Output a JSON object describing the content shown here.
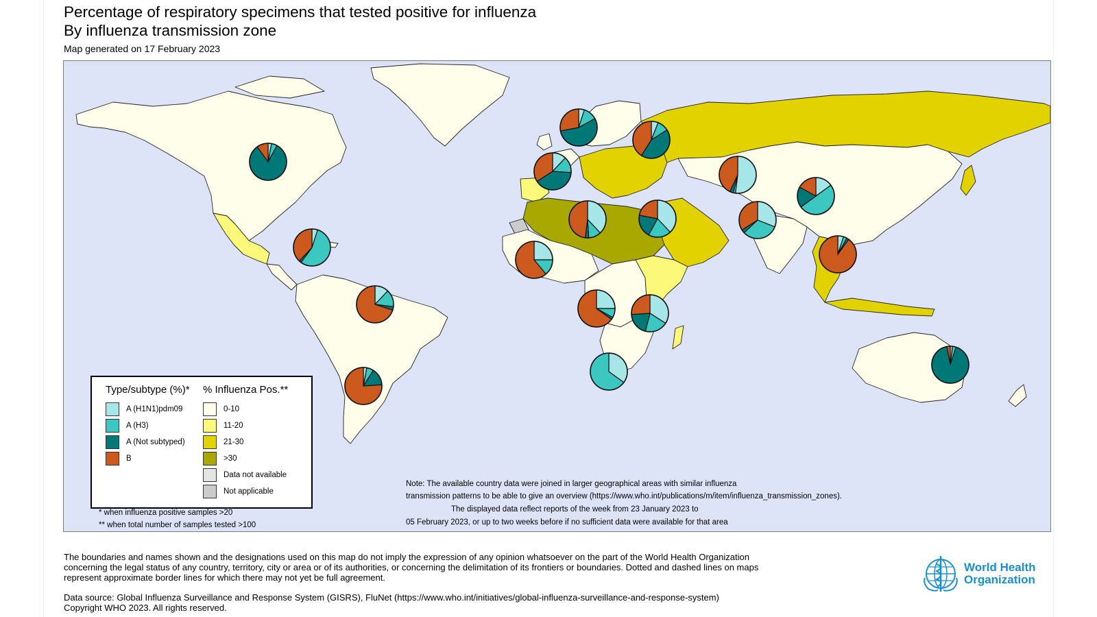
{
  "header": {
    "title_line1": "Percentage of respiratory specimens that tested positive for influenza",
    "title_line2": "By influenza transmission zone",
    "generated": "Map generated on 17 February 2023"
  },
  "colors": {
    "ocean": "#dde4f8",
    "h1n1": "#a6e6e8",
    "h3": "#3cc8c0",
    "not_subtyped": "#007878",
    "b": "#cc5a1e",
    "pos_0_10": "#fffeea",
    "pos_11_20": "#fbf87a",
    "pos_21_30": "#e2d200",
    "pos_gt30": "#a9a800",
    "not_available": "#e4e4e4",
    "not_applicable": "#cccccc"
  },
  "legend": {
    "type_heading": "Type/subtype (%)*",
    "type_items": [
      "A (H1N1)pdm09",
      "A (H3)",
      "A (Not subtyped)",
      "B"
    ],
    "pos_heading": "% Influenza Pos.**",
    "pos_items": [
      "0-10",
      "11-20",
      "21-30",
      ">30",
      "Data not available",
      "Not applicable"
    ]
  },
  "footnotes": {
    "f1": "* when influenza positive samples >20",
    "f2": "** when total number of samples tested >100"
  },
  "note": {
    "l1": "Note: The available country data were joined in larger geographical areas with similar influenza",
    "l2": "transmission patterns to be able to give an overview (https://www.who.int/publications/m/item/influenza_transmission_zones).",
    "l3": "The displayed data reflect reports of the week from 23 January 2023 to",
    "l4": "05 February 2023, or up to two weeks before if no sufficient data were available for that area"
  },
  "disclaimer": {
    "l1": "The boundaries and names shown and the designations used on this map do not imply the expression of any opinion whatsoever on the part of the World Health Organization",
    "l2": "concerning the legal status of any country, territory, city or area or of its authorities, or concerning the delimitation of its frontiers or boundaries. Dotted and dashed lines on maps",
    "l3": "represent approximate border lines for which there may not yet be full agreement.",
    "source": "Data source: Global Influenza Surveillance and Response System (GISRS), FluNet (https://www.who.int/initiatives/global-influenza-surveillance-and-response-system)",
    "copyright": "Copyright WHO 2023. All rights reserved."
  },
  "logo": {
    "line1": "World Health",
    "line2": "Organization"
  },
  "zone_pies": [
    {
      "zone": "North America",
      "h1n1": 3,
      "h3": 5,
      "not_subtyped": 82,
      "b": 10
    },
    {
      "zone": "Central America Caribbean",
      "h1n1": 5,
      "h3": 55,
      "not_subtyped": 2,
      "b": 38
    },
    {
      "zone": "Tropical South America",
      "h1n1": 12,
      "h3": 15,
      "not_subtyped": 3,
      "b": 70
    },
    {
      "zone": "Temperate South America",
      "h1n1": 3,
      "h3": 6,
      "not_subtyped": 15,
      "b": 76
    },
    {
      "zone": "Northern Europe",
      "h1n1": 5,
      "h3": 12,
      "not_subtyped": 55,
      "b": 28
    },
    {
      "zone": "Eastern Europe",
      "h1n1": 6,
      "h3": 10,
      "not_subtyped": 43,
      "b": 41
    },
    {
      "zone": "South West Europe",
      "h1n1": 12,
      "h3": 14,
      "not_subtyped": 40,
      "b": 34
    },
    {
      "zone": "Northern Africa",
      "h1n1": 38,
      "h3": 11,
      "not_subtyped": 3,
      "b": 48
    },
    {
      "zone": "Western Africa",
      "h1n1": 25,
      "h3": 14,
      "not_subtyped": 0,
      "b": 61
    },
    {
      "zone": "Middle Africa",
      "h1n1": 25,
      "h3": 8,
      "not_subtyped": 2,
      "b": 65
    },
    {
      "zone": "Eastern Africa",
      "h1n1": 34,
      "h3": 20,
      "not_subtyped": 20,
      "b": 26
    },
    {
      "zone": "Southern Africa",
      "h1n1": 35,
      "h3": 65,
      "not_subtyped": 0,
      "b": 0
    },
    {
      "zone": "Western Asia",
      "h1n1": 38,
      "h3": 20,
      "not_subtyped": 20,
      "b": 22
    },
    {
      "zone": "Central Asia",
      "h1n1": 52,
      "h3": 2,
      "not_subtyped": 3,
      "b": 43
    },
    {
      "zone": "Southern Asia",
      "h1n1": 31,
      "h3": 32,
      "not_subtyped": 3,
      "b": 34
    },
    {
      "zone": "Eastern Asia",
      "h1n1": 15,
      "h3": 50,
      "not_subtyped": 18,
      "b": 17
    },
    {
      "zone": "South East Asia",
      "h1n1": 5,
      "h3": 3,
      "not_subtyped": 2,
      "b": 90
    },
    {
      "zone": "Oceania Melanesia Polynesia",
      "h1n1": 2,
      "h3": 3,
      "not_subtyped": 92,
      "b": 3
    }
  ]
}
